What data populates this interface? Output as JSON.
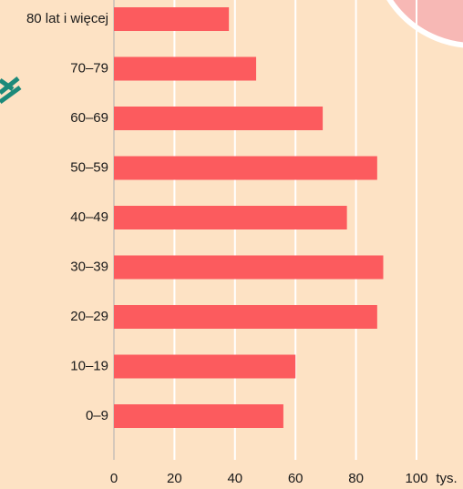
{
  "chart_data": {
    "type": "barh",
    "categories": [
      "80 lat i więcej",
      "70–79",
      "60–69",
      "50–59",
      "40–49",
      "30–39",
      "20–29",
      "10–19",
      "0–9"
    ],
    "values": [
      38,
      47,
      69,
      87,
      77,
      89,
      87,
      60,
      56
    ],
    "color": "#fc5b5e",
    "xlim": [
      0,
      100
    ],
    "xticks": [
      0,
      20,
      40,
      60,
      80,
      100
    ],
    "xlabel": "tys.",
    "grid": true
  }
}
